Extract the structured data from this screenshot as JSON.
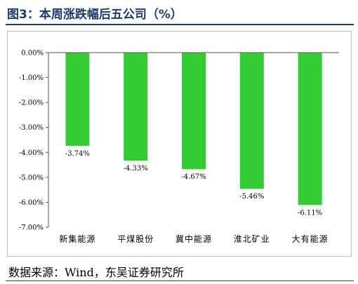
{
  "figure": {
    "title": "图3：本周涨跌幅后五公司（%）",
    "source": "数据来源：Wind，东吴证券研究所"
  },
  "colors": {
    "bar": "#33cc33",
    "title": "#1f3a6e",
    "axis": "#595959"
  },
  "chart_data": {
    "type": "bar",
    "categories": [
      "新集能源",
      "平煤股份",
      "冀中能源",
      "淮北矿业",
      "大有能源"
    ],
    "values": [
      -3.74,
      -4.33,
      -4.67,
      -5.46,
      -6.11
    ],
    "data_labels": [
      "-3.74%",
      "-4.33%",
      "-4.67%",
      "-5.46%",
      "-6.11%"
    ],
    "ylim": [
      -7,
      0
    ],
    "yticks": [
      0,
      -1,
      -2,
      -3,
      -4,
      -5,
      -6,
      -7
    ],
    "ytick_labels": [
      "0.00%",
      "-1.00%",
      "-2.00%",
      "-3.00%",
      "-4.00%",
      "-5.00%",
      "-6.00%",
      "-7.00%"
    ],
    "title": "",
    "xlabel": "",
    "ylabel": "",
    "grid": false,
    "legend": "none"
  }
}
